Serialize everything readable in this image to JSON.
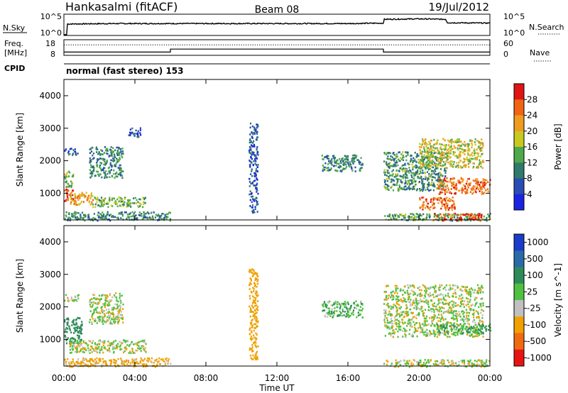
{
  "header": {
    "station": "Hankasalmi (fitACF)",
    "beam": "Beam 08",
    "date": "19/Jul/2012"
  },
  "noise_panel": {
    "left_label": "N.Sky",
    "left_ticks": [
      "10^5",
      "10^0"
    ],
    "right_ticks": [
      "10^5",
      "10^0"
    ],
    "right_label": "N.Search"
  },
  "freq_panel": {
    "left_label_line1": "Freq.",
    "left_label_line2": "[MHz]",
    "left_ticks": [
      "18",
      "8"
    ],
    "right_ticks": [
      "60",
      "0"
    ],
    "right_label": "Nave"
  },
  "cpid": {
    "label": "CPID",
    "text": "normal (fast stereo) 153"
  },
  "x_axis": {
    "ticks": [
      "00:00",
      "04:00",
      "08:00",
      "12:00",
      "16:00",
      "20:00",
      "00:00"
    ],
    "label": "Time UT"
  },
  "y_axis": {
    "label": "Slant Range [km]",
    "ticks": [
      "1000",
      "2000",
      "3000",
      "4000"
    ]
  },
  "power_colorbar": {
    "label": "Power [dB]",
    "ticks": [
      "4",
      "8",
      "12",
      "16",
      "20",
      "24",
      "28"
    ],
    "colors": [
      "#1a24e0",
      "#2a4cb4",
      "#2f7a6a",
      "#4fa84a",
      "#c8c81e",
      "#f09a1e",
      "#f06414",
      "#e01414"
    ]
  },
  "velocity_colorbar": {
    "label": "Velocity [m s^-1]",
    "ticks": [
      "1000",
      "500",
      "100",
      "25",
      "-25",
      "-100",
      "-500",
      "-1000"
    ],
    "colors": [
      "#1a3cc8",
      "#2a6aa8",
      "#2f8a5a",
      "#50c040",
      "#c0c0c0",
      "#f0a000",
      "#f06a10",
      "#e81414"
    ]
  },
  "chart_data": [
    {
      "type": "heatmap",
      "title": "Power [dB]",
      "xlabel": "Time UT",
      "ylabel": "Slant Range [km]",
      "xlim_hours": [
        0,
        24
      ],
      "ylim_km": [
        180,
        4500
      ],
      "colorbar_range_db": [
        0,
        30
      ],
      "regions": [
        {
          "t": [
            0.0,
            6.0
          ],
          "r": [
            180,
            450
          ],
          "level": 10
        },
        {
          "t": [
            0.0,
            0.6
          ],
          "r": [
            750,
            1150
          ],
          "level": 28
        },
        {
          "t": [
            0.3,
            1.6
          ],
          "r": [
            650,
            1050
          ],
          "level": 20
        },
        {
          "t": [
            0.0,
            0.5
          ],
          "r": [
            1200,
            1700
          ],
          "level": 14
        },
        {
          "t": [
            1.6,
            4.6
          ],
          "r": [
            600,
            900
          ],
          "level": 13
        },
        {
          "t": [
            0.0,
            0.8
          ],
          "r": [
            2200,
            2400
          ],
          "level": 7
        },
        {
          "t": [
            1.4,
            3.3
          ],
          "r": [
            1500,
            2450
          ],
          "level": 10
        },
        {
          "t": [
            3.6,
            4.3
          ],
          "r": [
            2750,
            3050
          ],
          "level": 5
        },
        {
          "t": [
            10.4,
            10.9
          ],
          "r": [
            400,
            3200
          ],
          "level": 6
        },
        {
          "t": [
            14.5,
            16.8
          ],
          "r": [
            1700,
            2200
          ],
          "level": 10
        },
        {
          "t": [
            18.0,
            21.5
          ],
          "r": [
            1100,
            2300
          ],
          "level": 11
        },
        {
          "t": [
            18.0,
            24.0
          ],
          "r": [
            180,
            400
          ],
          "level": 12
        },
        {
          "t": [
            20.8,
            23.5
          ],
          "r": [
            180,
            400
          ],
          "level": 26
        },
        {
          "t": [
            20.0,
            23.6
          ],
          "r": [
            1800,
            2700
          ],
          "level": 17
        },
        {
          "t": [
            21.0,
            24.0
          ],
          "r": [
            1000,
            1500
          ],
          "level": 24
        },
        {
          "t": [
            20.0,
            22.0
          ],
          "r": [
            500,
            900
          ],
          "level": 24
        }
      ]
    },
    {
      "type": "heatmap",
      "title": "Velocity [m s^-1]",
      "xlabel": "Time UT",
      "ylabel": "Slant Range [km]",
      "xlim_hours": [
        0,
        24
      ],
      "ylim_km": [
        180,
        4500
      ],
      "colorbar_range_ms": [
        -1000,
        1000
      ],
      "regions": [
        {
          "t": [
            0.0,
            6.0
          ],
          "r": [
            180,
            450
          ],
          "value": -60
        },
        {
          "t": [
            0.0,
            1.0
          ],
          "r": [
            900,
            1700
          ],
          "value": 150
        },
        {
          "t": [
            0.3,
            4.6
          ],
          "r": [
            600,
            1000
          ],
          "value": 0
        },
        {
          "t": [
            0.0,
            0.8
          ],
          "r": [
            2200,
            2400
          ],
          "value": 0
        },
        {
          "t": [
            1.4,
            3.3
          ],
          "r": [
            1500,
            2450
          ],
          "value": 0
        },
        {
          "t": [
            10.4,
            10.9
          ],
          "r": [
            400,
            3200
          ],
          "value": -200
        },
        {
          "t": [
            14.5,
            16.8
          ],
          "r": [
            1700,
            2200
          ],
          "value": 40
        },
        {
          "t": [
            18.0,
            23.6
          ],
          "r": [
            1100,
            2700
          ],
          "value": 0
        },
        {
          "t": [
            18.0,
            24.0
          ],
          "r": [
            180,
            400
          ],
          "value": 0
        },
        {
          "t": [
            21.0,
            24.0
          ],
          "r": [
            1200,
            1500
          ],
          "value": 60
        }
      ]
    },
    {
      "type": "line",
      "title": "N.Sky / N.Search",
      "x_hours": [
        0.0,
        0.15,
        0.2,
        3.0,
        6.0,
        10.0,
        12.0,
        16.0,
        18.0,
        18.05,
        20.0,
        21.5,
        21.6,
        24.0
      ],
      "noise_sky_log10": [
        0.2,
        0.2,
        2.7,
        2.8,
        2.8,
        2.8,
        2.8,
        2.8,
        2.9,
        3.8,
        3.9,
        3.8,
        3.0,
        2.9
      ],
      "ylim_log10": [
        0,
        5
      ]
    },
    {
      "type": "line",
      "title": "Freq. / Nave",
      "x_hours": [
        0.0,
        6.0,
        6.0,
        18.0,
        18.0,
        24.0
      ],
      "freq_mhz": [
        10.1,
        10.1,
        12.0,
        12.0,
        10.1,
        10.1
      ],
      "nave": [
        40,
        40,
        40,
        40,
        40,
        40
      ],
      "freq_ylim": [
        8,
        18
      ],
      "nave_ylim": [
        0,
        60
      ]
    }
  ]
}
